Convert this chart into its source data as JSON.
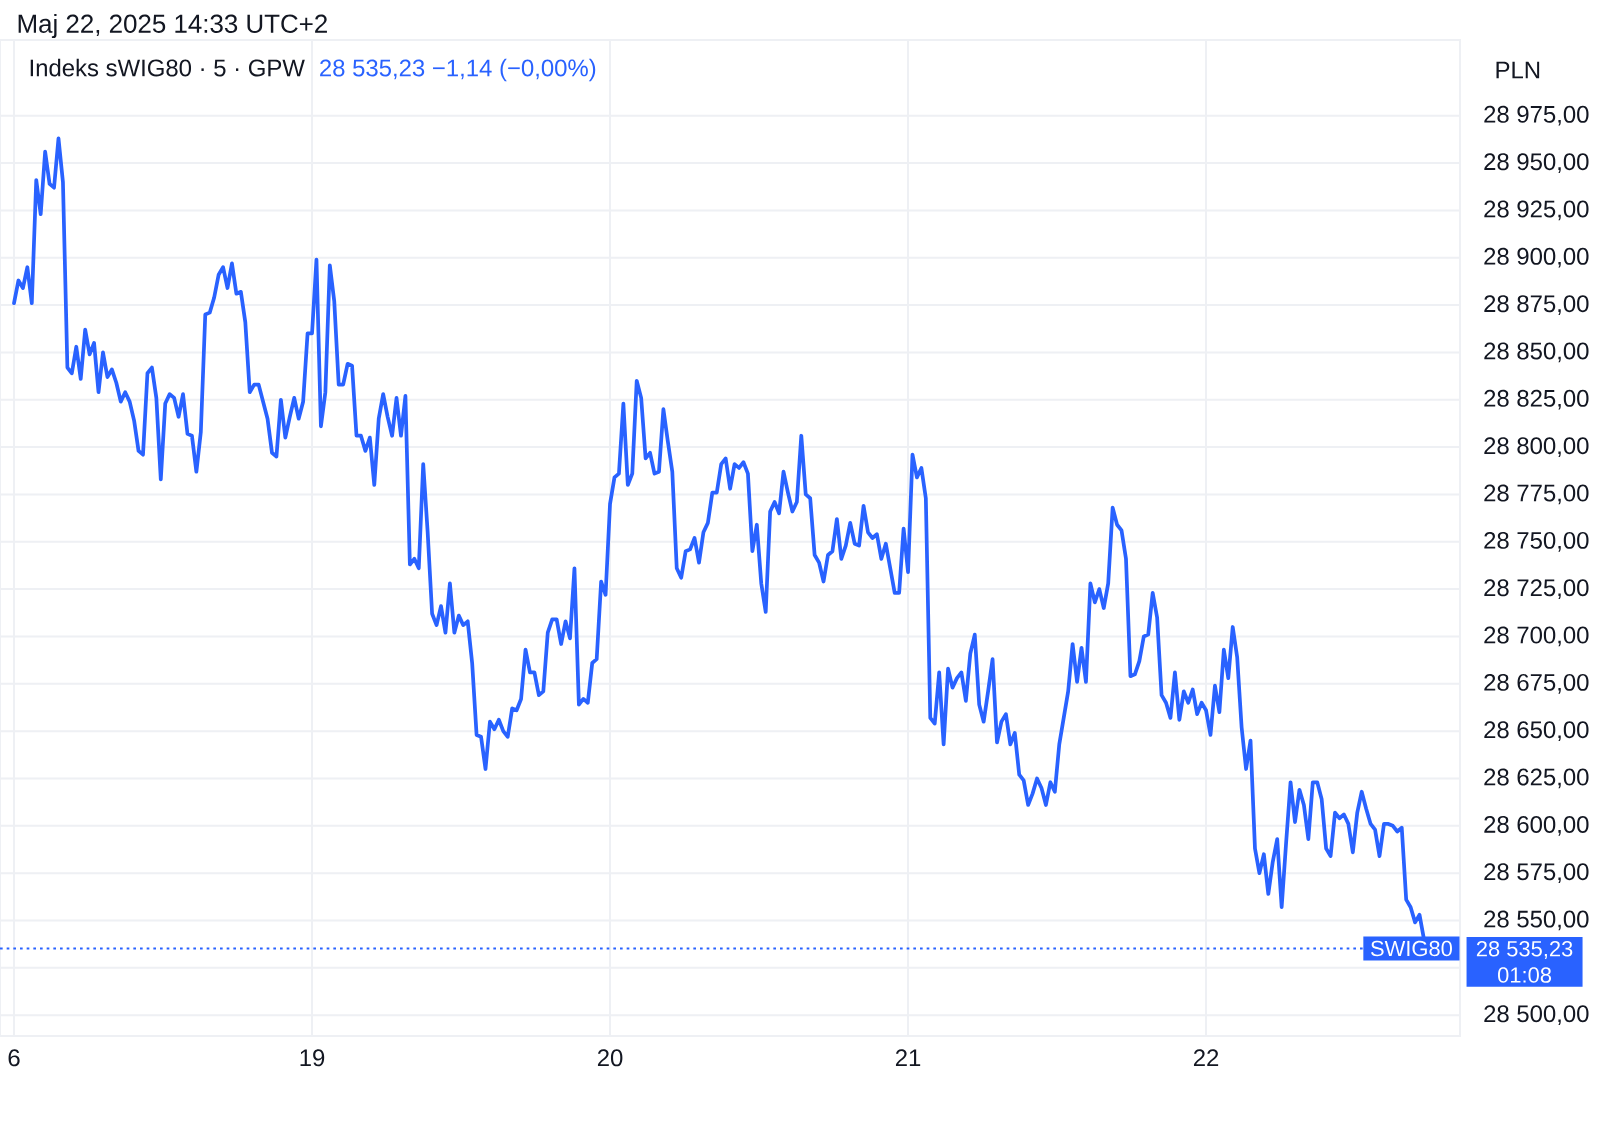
{
  "chart_data": {
    "type": "line",
    "title": "Indeks sWIG80 · 5 · GPW",
    "subtitle": "28 535,23 −1,14 (−0,00%)",
    "ylabel": "PLN",
    "annotations": [
      "Maj 22, 2025 14:33 UTC+2",
      "28 535,23",
      "01:08"
    ],
    "categories": [
      "6",
      null,
      null,
      null,
      null,
      null,
      null,
      null,
      null,
      null,
      null,
      null,
      null,
      null,
      null,
      null,
      null,
      null,
      null,
      null,
      null,
      null,
      null,
      null,
      null,
      null,
      null,
      null,
      null,
      null,
      null,
      null,
      null,
      null,
      null,
      null,
      null,
      null,
      null,
      null,
      null,
      null,
      null,
      null,
      null,
      null,
      null,
      null,
      null,
      null,
      null,
      null,
      null,
      null,
      null,
      null,
      null,
      null,
      null,
      null,
      null,
      null,
      null,
      null,
      null,
      null,
      null,
      "19",
      null,
      null,
      null,
      null,
      null,
      null,
      null,
      null,
      null,
      null,
      null,
      null,
      null,
      null,
      null,
      null,
      null,
      null,
      null,
      null,
      null,
      null,
      null,
      null,
      null,
      null,
      null,
      null,
      null,
      null,
      null,
      null,
      null,
      null,
      null,
      null,
      null,
      null,
      null,
      null,
      null,
      null,
      null,
      null,
      null,
      null,
      null,
      null,
      null,
      null,
      null,
      null,
      null,
      null,
      null,
      null,
      null,
      null,
      null,
      null,
      null,
      null,
      null,
      null,
      null,
      null,
      "20",
      null,
      null,
      null,
      null,
      null,
      null,
      null,
      null,
      null,
      null,
      null,
      null,
      null,
      null,
      null,
      null,
      null,
      null,
      null,
      null,
      null,
      null,
      null,
      null,
      null,
      null,
      null,
      null,
      null,
      null,
      null,
      null,
      null,
      null,
      null,
      null,
      null,
      null,
      null,
      null,
      null,
      null,
      null,
      null,
      null,
      null,
      null,
      null,
      null,
      null,
      null,
      null,
      null,
      null,
      null,
      null,
      null,
      null,
      null,
      null,
      null,
      null,
      null,
      null,
      null,
      null,
      "21",
      null,
      null,
      null,
      null,
      null,
      null,
      null,
      null,
      null,
      null,
      null,
      null,
      null,
      null,
      null,
      null,
      null,
      null,
      null,
      null,
      null,
      null,
      null,
      null,
      null,
      null,
      null,
      null,
      null,
      null,
      null,
      null,
      null,
      null,
      null,
      null,
      null,
      null,
      null,
      null,
      null,
      null,
      null,
      null,
      null,
      null,
      null,
      null,
      null,
      null,
      null,
      null,
      null,
      null,
      null,
      null,
      null,
      null,
      null,
      null,
      null,
      null,
      null,
      null,
      null,
      null,
      "22",
      null,
      null,
      null,
      null,
      null,
      null,
      null,
      null,
      null,
      null,
      null,
      null,
      null,
      null,
      null,
      null,
      null,
      null,
      null,
      null,
      null,
      null,
      null,
      null,
      null,
      null,
      null,
      null,
      null,
      null,
      null,
      null,
      null,
      null,
      null,
      null,
      null,
      null,
      null,
      null,
      null,
      null,
      null,
      null,
      null,
      null,
      null,
      null,
      null
    ],
    "series": [
      {
        "color": "#2962ff",
        "values": [
          28876,
          28888,
          28884,
          28895,
          28876,
          28941,
          28923,
          28956,
          28939,
          28937,
          28963,
          28940,
          28842,
          28839,
          28853,
          28836,
          28862,
          28849,
          28855,
          28829,
          28850,
          28837,
          28841,
          28834,
          28824,
          28829,
          28824,
          28814,
          28798,
          28796,
          28839,
          28842,
          28826,
          28783,
          28823,
          28828,
          28826,
          28816,
          28828,
          28807,
          28806,
          28787,
          28808,
          28870,
          28871,
          28879,
          28891,
          28895,
          28884,
          28897,
          28881,
          28882,
          28866,
          28829,
          28833,
          28833,
          28824,
          28815,
          28797,
          28795,
          28825,
          28805,
          28816,
          28826,
          28815,
          28824,
          28860,
          28860,
          28899,
          28811,
          28829,
          28896,
          28877,
          28833,
          28833,
          28844,
          28843,
          28806,
          28806,
          28798,
          28805,
          28780,
          28815,
          28828,
          28816,
          28806,
          28826,
          28806,
          28827,
          28738,
          28741,
          28736,
          28791,
          28755,
          28712,
          28706,
          28716,
          28702,
          28728,
          28702,
          28711,
          28706,
          28708,
          28686,
          28648,
          28647,
          28630,
          28655,
          28651,
          28656,
          28650,
          28647,
          28662,
          28661,
          28667,
          28693,
          28681,
          28681,
          28669,
          28671,
          28702,
          28709,
          28709,
          28696,
          28708,
          28699,
          28736,
          28664,
          28667,
          28665,
          28686,
          28688,
          28729,
          28722,
          28770,
          28784,
          28786,
          28823,
          28780,
          28786,
          28835,
          28826,
          28794,
          28797,
          28786,
          28787,
          28820,
          28803,
          28787,
          28736,
          28731,
          28745,
          28746,
          28752,
          28739,
          28755,
          28760,
          28776,
          28776,
          28791,
          28794,
          28778,
          28791,
          28789,
          28792,
          28786,
          28745,
          28759,
          28728,
          28713,
          28766,
          28771,
          28765,
          28787,
          28776,
          28766,
          28771,
          28806,
          28775,
          28773,
          28743,
          28739,
          28729,
          28743,
          28745,
          28762,
          28741,
          28748,
          28760,
          28749,
          28748,
          28769,
          28755,
          28752,
          28754,
          28741,
          28749,
          28736,
          28723,
          28723,
          28757,
          28734,
          28796,
          28784,
          28789,
          28773,
          28657,
          28654,
          28681,
          28643,
          28683,
          28673,
          28678,
          28681,
          28666,
          28691,
          28701,
          28664,
          28655,
          28671,
          28688,
          28644,
          28655,
          28659,
          28643,
          28649,
          28627,
          28624,
          28611,
          28617,
          28625,
          28620,
          28611,
          28623,
          28618,
          28643,
          28657,
          28671,
          28696,
          28676,
          28694,
          28676,
          28728,
          28718,
          28725,
          28715,
          28728,
          28768,
          28759,
          28756,
          28741,
          28679,
          28680,
          28687,
          28700,
          28701,
          28723,
          28710,
          28669,
          28665,
          28657,
          28681,
          28656,
          28671,
          28665,
          28672,
          28659,
          28665,
          28661,
          28648,
          28674,
          28660,
          28693,
          28678,
          28705,
          28689,
          28652,
          28630,
          28645,
          28588,
          28575,
          28585,
          28564,
          28581,
          28593,
          28557,
          28591,
          28623,
          28602,
          28619,
          28611,
          28593,
          28623,
          28623,
          28614,
          28588,
          28584,
          28607,
          28604,
          28606,
          28601,
          28586,
          28607,
          28618,
          28609,
          28601,
          28598,
          28584,
          28601,
          28601,
          28600,
          28597,
          28599,
          28561,
          28557,
          28549,
          28553,
          28540
        ]
      }
    ],
    "ylim": [
      28489,
      29015
    ],
    "yticks": [
      {
        "value": 28500,
        "label": "28 500,00"
      },
      {
        "value": 28525,
        "label": null
      },
      {
        "value": 28550,
        "label": "28 550,00"
      },
      {
        "value": 28575,
        "label": "28 575,00"
      },
      {
        "value": 28600,
        "label": "28 600,00"
      },
      {
        "value": 28625,
        "label": "28 625,00"
      },
      {
        "value": 28650,
        "label": "28 650,00"
      },
      {
        "value": 28675,
        "label": "28 675,00"
      },
      {
        "value": 28700,
        "label": "28 700,00"
      },
      {
        "value": 28725,
        "label": "28 725,00"
      },
      {
        "value": 28750,
        "label": "28 750,00"
      },
      {
        "value": 28775,
        "label": "28 775,00"
      },
      {
        "value": 28800,
        "label": "28 800,00"
      },
      {
        "value": 28825,
        "label": "28 825,00"
      },
      {
        "value": 28850,
        "label": "28 850,00"
      },
      {
        "value": 28875,
        "label": "28 875,00"
      },
      {
        "value": 28900,
        "label": "28 900,00"
      },
      {
        "value": 28925,
        "label": "28 925,00"
      },
      {
        "value": 28950,
        "label": "28 950,00"
      },
      {
        "value": 28975,
        "label": "28 975,00"
      }
    ],
    "grid": true,
    "ref_lines": [
      {
        "axis": "y",
        "value": 28535.23,
        "label": "SWIG80",
        "color": "#2962ff",
        "line_style": "dotted"
      }
    ]
  }
}
